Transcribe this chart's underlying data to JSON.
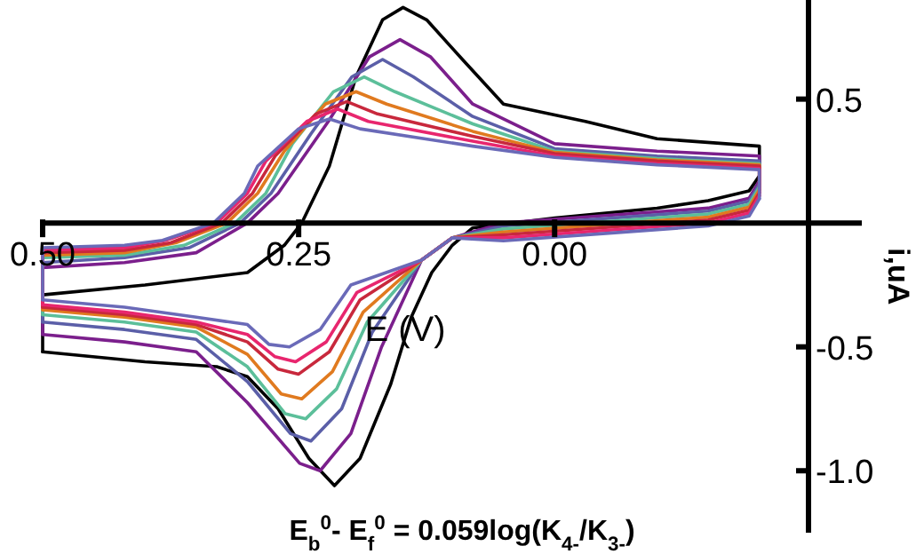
{
  "chart_data": {
    "type": "line",
    "xlabel": "E (V)",
    "ylabel": "i,uA",
    "xlim": [
      0.5,
      -0.3
    ],
    "ylim": [
      -1.25,
      0.9
    ],
    "xticks": [
      {
        "value": 0.5,
        "label": "0.50"
      },
      {
        "value": 0.25,
        "label": "0.25"
      },
      {
        "value": 0,
        "label": "0.00"
      }
    ],
    "yticks": [
      {
        "value": 0.5,
        "label": "0.5"
      },
      {
        "value": -0.5,
        "label": "-0.5"
      },
      {
        "value": -1,
        "label": "-1.0"
      }
    ],
    "grid": false,
    "marker": "none",
    "line_style": "solid",
    "annotations": [
      "E$_{b}$$^{0}$- E$_{f}$$^{0}$ = 0.059log(K$_{4-}$/K$_{3-}$)"
    ],
    "series": [
      {
        "color": "#000000",
        "x": [
          0.5,
          0.4,
          0.33,
          0.3,
          0.27,
          0.24,
          0.215,
          0.19,
          0.16,
          0.14,
          0.12,
          0.1,
          0.08,
          0,
          -0.1,
          -0.15,
          -0.19,
          -0.2
        ],
        "values": [
          -0.52,
          -0.56,
          -0.58,
          -0.62,
          -0.75,
          -0.95,
          -1.06,
          -0.95,
          -0.65,
          -0.38,
          -0.2,
          -0.09,
          -0.02,
          0.02,
          0.06,
          0.09,
          0.13,
          0.19
        ]
      },
      {
        "color": "#000000",
        "x": [
          -0.2,
          -0.2,
          -0.1,
          -0.03,
          0.05,
          0.09,
          0.125,
          0.148,
          0.168,
          0.194,
          0.22,
          0.247,
          0.264,
          0.3,
          0.4,
          0.5,
          0.5
        ],
        "values": [
          0.19,
          0.31,
          0.34,
          0.41,
          0.48,
          0.66,
          0.82,
          0.87,
          0.82,
          0.59,
          0.23,
          0,
          -0.09,
          -0.2,
          -0.25,
          -0.29,
          -0.52
        ]
      },
      {
        "color": "#7b1f8c",
        "x": [
          0.5,
          0.42,
          0.35,
          0.3,
          0.249,
          0.229,
          0.199,
          0.169,
          0.13,
          0.1,
          0.05,
          -0.05,
          -0.15,
          -0.19,
          -0.2
        ],
        "values": [
          -0.45,
          -0.48,
          -0.52,
          -0.725,
          -0.97,
          -1.0,
          -0.85,
          -0.5,
          -0.15,
          -0.06,
          0,
          0.03,
          0.06,
          0.1,
          0.17
        ]
      },
      {
        "color": "#7b1f8c",
        "x": [
          -0.2,
          -0.2,
          -0.1,
          0,
          0.08,
          0.121,
          0.151,
          0.181,
          0.221,
          0.27,
          0.3,
          0.35,
          0.42,
          0.5,
          0.5
        ],
        "values": [
          0.17,
          0.27,
          0.29,
          0.32,
          0.48,
          0.67,
          0.74,
          0.67,
          0.41,
          0.12,
          0,
          -0.12,
          -0.16,
          -0.18,
          -0.45
        ]
      },
      {
        "color": "#5b5fa8",
        "x": [
          0.5,
          0.42,
          0.35,
          0.3,
          0.258,
          0.238,
          0.208,
          0.178,
          0.13,
          0.1,
          0.05,
          -0.05,
          -0.15,
          -0.19,
          -0.2
        ],
        "values": [
          -0.4,
          -0.43,
          -0.47,
          -0.64,
          -0.85,
          -0.88,
          -0.75,
          -0.44,
          -0.15,
          -0.06,
          -0.012,
          0.018,
          0.048,
          0.088,
          0.158
        ]
      },
      {
        "color": "#5b5fa8",
        "x": [
          -0.2,
          -0.2,
          -0.1,
          0,
          0.08,
          0.138,
          0.168,
          0.198,
          0.238,
          0.277,
          0.307,
          0.357,
          0.42,
          0.5,
          0.5
        ],
        "values": [
          0.158,
          0.25,
          0.27,
          0.3,
          0.43,
          0.59,
          0.66,
          0.59,
          0.36,
          0.12,
          0,
          -0.1,
          -0.14,
          -0.16,
          -0.4
        ]
      },
      {
        "color": "#5cbf9a",
        "x": [
          0.5,
          0.42,
          0.35,
          0.3,
          0.263,
          0.243,
          0.213,
          0.183,
          0.13,
          0.1,
          0.05,
          -0.05,
          -0.15,
          -0.19,
          -0.2
        ],
        "values": [
          -0.37,
          -0.4,
          -0.44,
          -0.58,
          -0.77,
          -0.79,
          -0.67,
          -0.4,
          -0.15,
          -0.06,
          -0.024,
          0.006,
          0.036,
          0.076,
          0.146
        ]
      },
      {
        "color": "#5cbf9a",
        "x": [
          -0.2,
          -0.2,
          -0.1,
          0,
          0.08,
          0.156,
          0.186,
          0.216,
          0.256,
          0.282,
          0.312,
          0.362,
          0.42,
          0.5,
          0.5
        ],
        "values": [
          0.146,
          0.24,
          0.26,
          0.29,
          0.4,
          0.53,
          0.59,
          0.53,
          0.32,
          0.12,
          0,
          -0.09,
          -0.13,
          -0.14,
          -0.37
        ]
      },
      {
        "color": "#e07a1f",
        "x": [
          0.5,
          0.42,
          0.35,
          0.3,
          0.267,
          0.247,
          0.217,
          0.187,
          0.13,
          0.1,
          0.05,
          -0.05,
          -0.15,
          -0.19,
          -0.2
        ],
        "values": [
          -0.35,
          -0.38,
          -0.42,
          -0.53,
          -0.69,
          -0.71,
          -0.6,
          -0.36,
          -0.15,
          -0.06,
          -0.036,
          -0.006,
          0.024,
          0.064,
          0.134
        ]
      },
      {
        "color": "#e07a1f",
        "x": [
          -0.2,
          -0.2,
          -0.1,
          0,
          0.08,
          0.164,
          0.194,
          0.224,
          0.264,
          0.29,
          0.32,
          0.37,
          0.42,
          0.5,
          0.5
        ],
        "values": [
          0.134,
          0.235,
          0.255,
          0.285,
          0.37,
          0.48,
          0.53,
          0.48,
          0.29,
          0.12,
          0,
          -0.08,
          -0.12,
          -0.13,
          -0.35
        ]
      },
      {
        "color": "#c8283c",
        "x": [
          0.5,
          0.42,
          0.35,
          0.3,
          0.27,
          0.25,
          0.22,
          0.19,
          0.13,
          0.1,
          0.05,
          -0.05,
          -0.15,
          -0.19,
          -0.2
        ],
        "values": [
          -0.34,
          -0.37,
          -0.41,
          -0.48,
          -0.59,
          -0.61,
          -0.52,
          -0.31,
          -0.15,
          -0.06,
          -0.048,
          -0.018,
          0.012,
          0.052,
          0.122
        ]
      },
      {
        "color": "#c8283c",
        "x": [
          -0.2,
          -0.2,
          -0.1,
          0,
          0.08,
          0.173,
          0.203,
          0.233,
          0.273,
          0.295,
          0.325,
          0.375,
          0.42,
          0.5,
          0.5
        ],
        "values": [
          0.122,
          0.23,
          0.25,
          0.28,
          0.35,
          0.44,
          0.49,
          0.44,
          0.27,
          0.12,
          0,
          -0.08,
          -0.11,
          -0.12,
          -0.34
        ]
      },
      {
        "color": "#e8266e",
        "x": [
          0.5,
          0.42,
          0.35,
          0.3,
          0.273,
          0.253,
          0.223,
          0.193,
          0.13,
          0.1,
          0.05,
          -0.05,
          -0.15,
          -0.19,
          -0.2
        ],
        "values": [
          -0.33,
          -0.36,
          -0.4,
          -0.45,
          -0.54,
          -0.56,
          -0.48,
          -0.28,
          -0.15,
          -0.06,
          -0.06,
          -0.03,
          0,
          0.04,
          0.11
        ]
      },
      {
        "color": "#e8266e",
        "x": [
          -0.2,
          -0.2,
          -0.1,
          0,
          0.08,
          0.182,
          0.212,
          0.242,
          0.282,
          0.3,
          0.33,
          0.38,
          0.42,
          0.5,
          0.5
        ],
        "values": [
          0.11,
          0.22,
          0.24,
          0.27,
          0.33,
          0.41,
          0.46,
          0.41,
          0.25,
          0.12,
          0,
          -0.07,
          -0.1,
          -0.11,
          -0.33
        ]
      },
      {
        "color": "#6a6ab8",
        "x": [
          0.5,
          0.42,
          0.35,
          0.3,
          0.279,
          0.259,
          0.229,
          0.199,
          0.13,
          0.1,
          0.05,
          -0.05,
          -0.15,
          -0.19,
          -0.2
        ],
        "values": [
          -0.31,
          -0.34,
          -0.38,
          -0.41,
          -0.49,
          -0.5,
          -0.43,
          -0.25,
          -0.15,
          -0.06,
          -0.072,
          -0.042,
          -0.012,
          0.028,
          0.098
        ]
      },
      {
        "color": "#6a6ab8",
        "x": [
          -0.2,
          -0.2,
          -0.1,
          0,
          0.08,
          0.19,
          0.22,
          0.25,
          0.29,
          0.303,
          0.333,
          0.383,
          0.42,
          0.5,
          0.5
        ],
        "values": [
          0.098,
          0.215,
          0.235,
          0.265,
          0.31,
          0.38,
          0.42,
          0.38,
          0.23,
          0.12,
          0,
          -0.07,
          -0.09,
          -0.1,
          -0.31
        ]
      }
    ]
  }
}
